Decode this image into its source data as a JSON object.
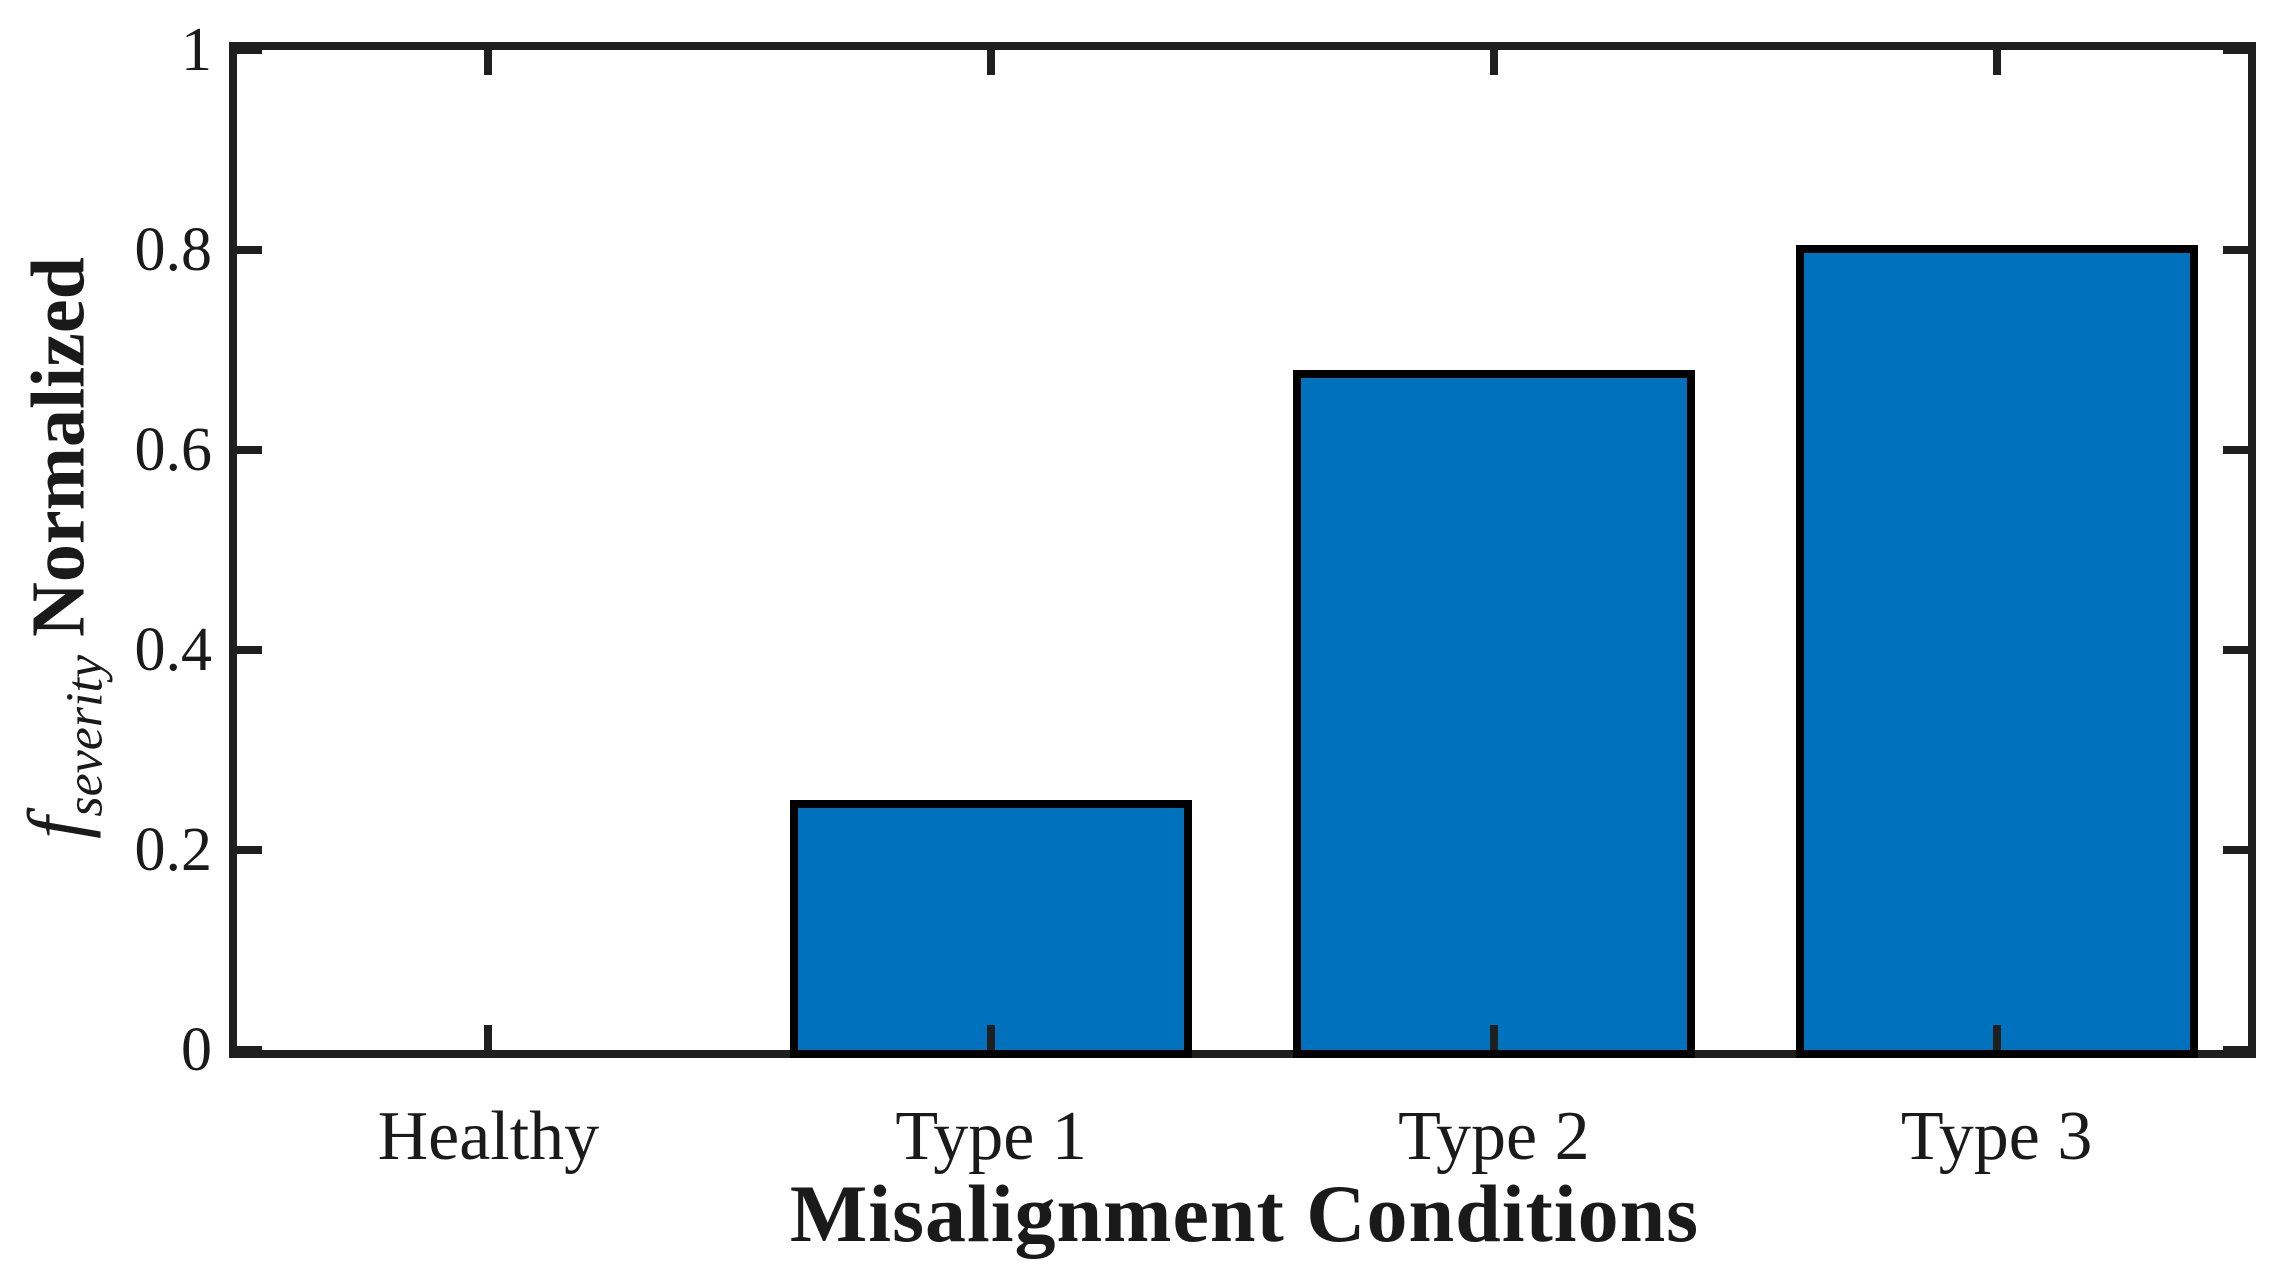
{
  "chart_data": {
    "type": "bar",
    "title": "",
    "categories": [
      "Healthy",
      "Type 1",
      "Type 2",
      "Type 3"
    ],
    "values": [
      0,
      0.25,
      0.68,
      0.805
    ],
    "xlabel": "Misalignment Conditions",
    "ylabel": "f_severity Normalized",
    "ylabel_parts": {
      "italic": "f",
      "subscript": "severity",
      "main": "Normalized"
    },
    "ylim": [
      0,
      1
    ],
    "yticks": [
      0,
      0.2,
      0.4,
      0.6,
      0.8,
      1
    ],
    "ytick_labels": [
      "0",
      "0.2",
      "0.4",
      "0.6",
      "0.8",
      "1"
    ],
    "bar_width_fraction": 0.8,
    "grid": false,
    "legend": "none",
    "colors": {
      "bar_fill": "#0072BD",
      "bar_edge": "#000000",
      "axis": "#1f1f1f",
      "text": "#1a1a1a",
      "background": "#ffffff"
    }
  }
}
